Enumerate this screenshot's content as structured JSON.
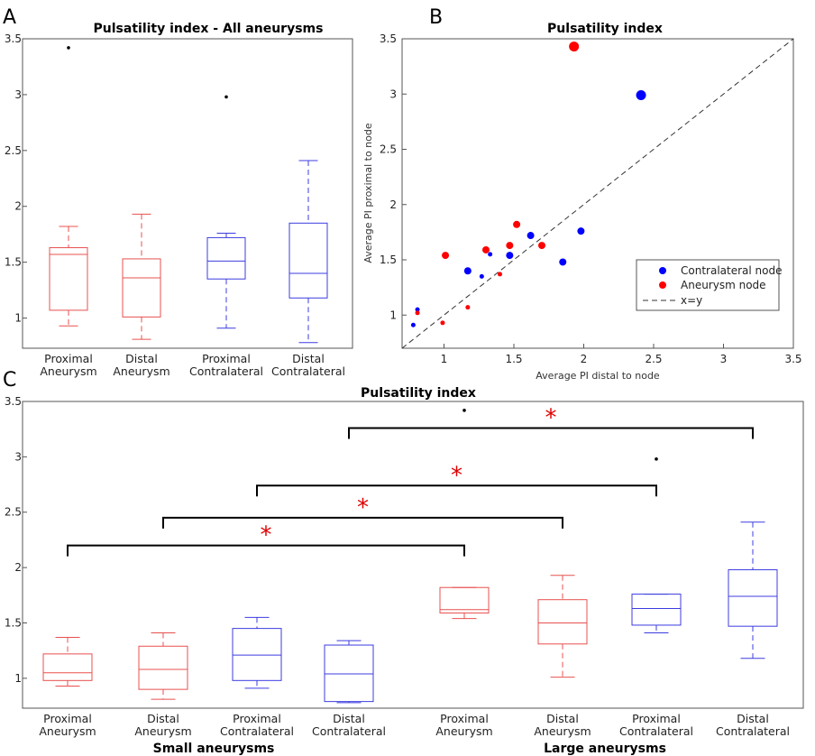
{
  "colors": {
    "red": "#e8504f",
    "blue": "#3c3ce0",
    "marker_red": "#ff0000",
    "marker_blue": "#0000ff",
    "star": "#e00000"
  },
  "chart_data": [
    {
      "panel": "A",
      "type": "box",
      "title": "Pulsatility index - All aneurysms",
      "ylim": [
        0.73,
        3.5
      ],
      "yticks": [
        1,
        1.5,
        2,
        2.5,
        3,
        3.5
      ],
      "categories": [
        {
          "line1": "Proximal",
          "line2": "Aneurysm",
          "color": "red",
          "min": 0.93,
          "q1": 1.07,
          "median": 1.57,
          "q3": 1.63,
          "max": 1.82,
          "outliers": [
            3.42
          ]
        },
        {
          "line1": "Distal",
          "line2": "Aneurysm",
          "color": "red",
          "min": 0.81,
          "q1": 1.01,
          "median": 1.36,
          "q3": 1.53,
          "max": 1.93,
          "outliers": []
        },
        {
          "line1": "Proximal",
          "line2": "Contralateral",
          "color": "blue",
          "min": 0.91,
          "q1": 1.35,
          "median": 1.51,
          "q3": 1.72,
          "max": 1.76,
          "outliers": [
            2.98
          ]
        },
        {
          "line1": "Distal",
          "line2": "Contralateral",
          "color": "blue",
          "min": 0.78,
          "q1": 1.18,
          "median": 1.4,
          "q3": 1.85,
          "max": 2.41,
          "outliers": []
        }
      ]
    },
    {
      "panel": "B",
      "type": "scatter",
      "title": "Pulsatility index",
      "xlabel": "Average PI distal to node",
      "ylabel": "Average PI proximal to node",
      "xlim": [
        0.7,
        3.5
      ],
      "ylim": [
        0.7,
        3.5
      ],
      "xticks": [
        1,
        1.5,
        2,
        2.5,
        3,
        3.5
      ],
      "yticks": [
        1,
        1.5,
        2,
        2.5,
        3,
        3.5
      ],
      "series": [
        {
          "name": "Contralateral node",
          "color": "marker_blue",
          "points": [
            {
              "x": 0.78,
              "y": 0.91,
              "s": 1
            },
            {
              "x": 0.81,
              "y": 1.05,
              "s": 1
            },
            {
              "x": 1.17,
              "y": 1.4,
              "s": 2
            },
            {
              "x": 1.27,
              "y": 1.35,
              "s": 1
            },
            {
              "x": 1.33,
              "y": 1.55,
              "s": 1
            },
            {
              "x": 1.47,
              "y": 1.54,
              "s": 2
            },
            {
              "x": 1.62,
              "y": 1.72,
              "s": 2
            },
            {
              "x": 1.85,
              "y": 1.48,
              "s": 2
            },
            {
              "x": 1.98,
              "y": 1.76,
              "s": 2
            },
            {
              "x": 2.41,
              "y": 2.99,
              "s": 3
            }
          ]
        },
        {
          "name": "Aneurysm node",
          "color": "marker_red",
          "points": [
            {
              "x": 0.81,
              "y": 1.02,
              "s": 1
            },
            {
              "x": 0.99,
              "y": 0.93,
              "s": 1
            },
            {
              "x": 1.01,
              "y": 1.54,
              "s": 2
            },
            {
              "x": 1.17,
              "y": 1.07,
              "s": 1
            },
            {
              "x": 1.3,
              "y": 1.59,
              "s": 2
            },
            {
              "x": 1.4,
              "y": 1.37,
              "s": 1
            },
            {
              "x": 1.47,
              "y": 1.63,
              "s": 2
            },
            {
              "x": 1.52,
              "y": 1.82,
              "s": 2
            },
            {
              "x": 1.7,
              "y": 1.63,
              "s": 2
            },
            {
              "x": 1.93,
              "y": 3.43,
              "s": 3
            }
          ]
        }
      ],
      "reference_line": {
        "name": "x=y"
      },
      "legend_position": "lower-right"
    },
    {
      "panel": "C",
      "type": "box",
      "title": "Pulsatility index",
      "ylim": [
        0.73,
        3.5
      ],
      "yticks": [
        1,
        1.5,
        2,
        2.5,
        3,
        3.5
      ],
      "groups": [
        "Small aneurysms",
        "Large aneurysms"
      ],
      "categories": [
        {
          "line1": "Proximal",
          "line2": "Aneurysm",
          "color": "red",
          "min": 0.93,
          "q1": 0.98,
          "median": 1.05,
          "q3": 1.22,
          "max": 1.37,
          "outliers": []
        },
        {
          "line1": "Distal",
          "line2": "Aneurysm",
          "color": "red",
          "min": 0.81,
          "q1": 0.9,
          "median": 1.08,
          "q3": 1.29,
          "max": 1.41,
          "outliers": []
        },
        {
          "line1": "Proximal",
          "line2": "Contralateral",
          "color": "blue",
          "min": 0.91,
          "q1": 0.98,
          "median": 1.21,
          "q3": 1.45,
          "max": 1.55,
          "outliers": []
        },
        {
          "line1": "Distal",
          "line2": "Contralateral",
          "color": "blue",
          "min": 0.78,
          "q1": 0.79,
          "median": 1.04,
          "q3": 1.3,
          "max": 1.34,
          "outliers": []
        },
        {
          "line1": "Proximal",
          "line2": "Aneurysm",
          "color": "red",
          "min": 1.54,
          "q1": 1.59,
          "median": 1.62,
          "q3": 1.82,
          "max": 1.82,
          "outliers": [
            3.42
          ]
        },
        {
          "line1": "Distal",
          "line2": "Aneurysm",
          "color": "red",
          "min": 1.01,
          "q1": 1.31,
          "median": 1.5,
          "q3": 1.71,
          "max": 1.93,
          "outliers": []
        },
        {
          "line1": "Proximal",
          "line2": "Contralateral",
          "color": "blue",
          "min": 1.41,
          "q1": 1.48,
          "median": 1.63,
          "q3": 1.76,
          "max": 1.76,
          "outliers": [
            2.98
          ]
        },
        {
          "line1": "Distal",
          "line2": "Contralateral",
          "color": "blue",
          "min": 1.18,
          "q1": 1.47,
          "median": 1.74,
          "q3": 1.98,
          "max": 2.41,
          "outliers": []
        }
      ],
      "significance": [
        {
          "from": 4,
          "to": 8,
          "y": 3.26,
          "label": "*"
        },
        {
          "from": 3,
          "to": 7,
          "y": 2.74,
          "label": "*"
        },
        {
          "from": 2,
          "to": 6,
          "y": 2.45,
          "label": "*"
        },
        {
          "from": 1,
          "to": 5,
          "y": 2.2,
          "label": "*"
        }
      ]
    }
  ]
}
